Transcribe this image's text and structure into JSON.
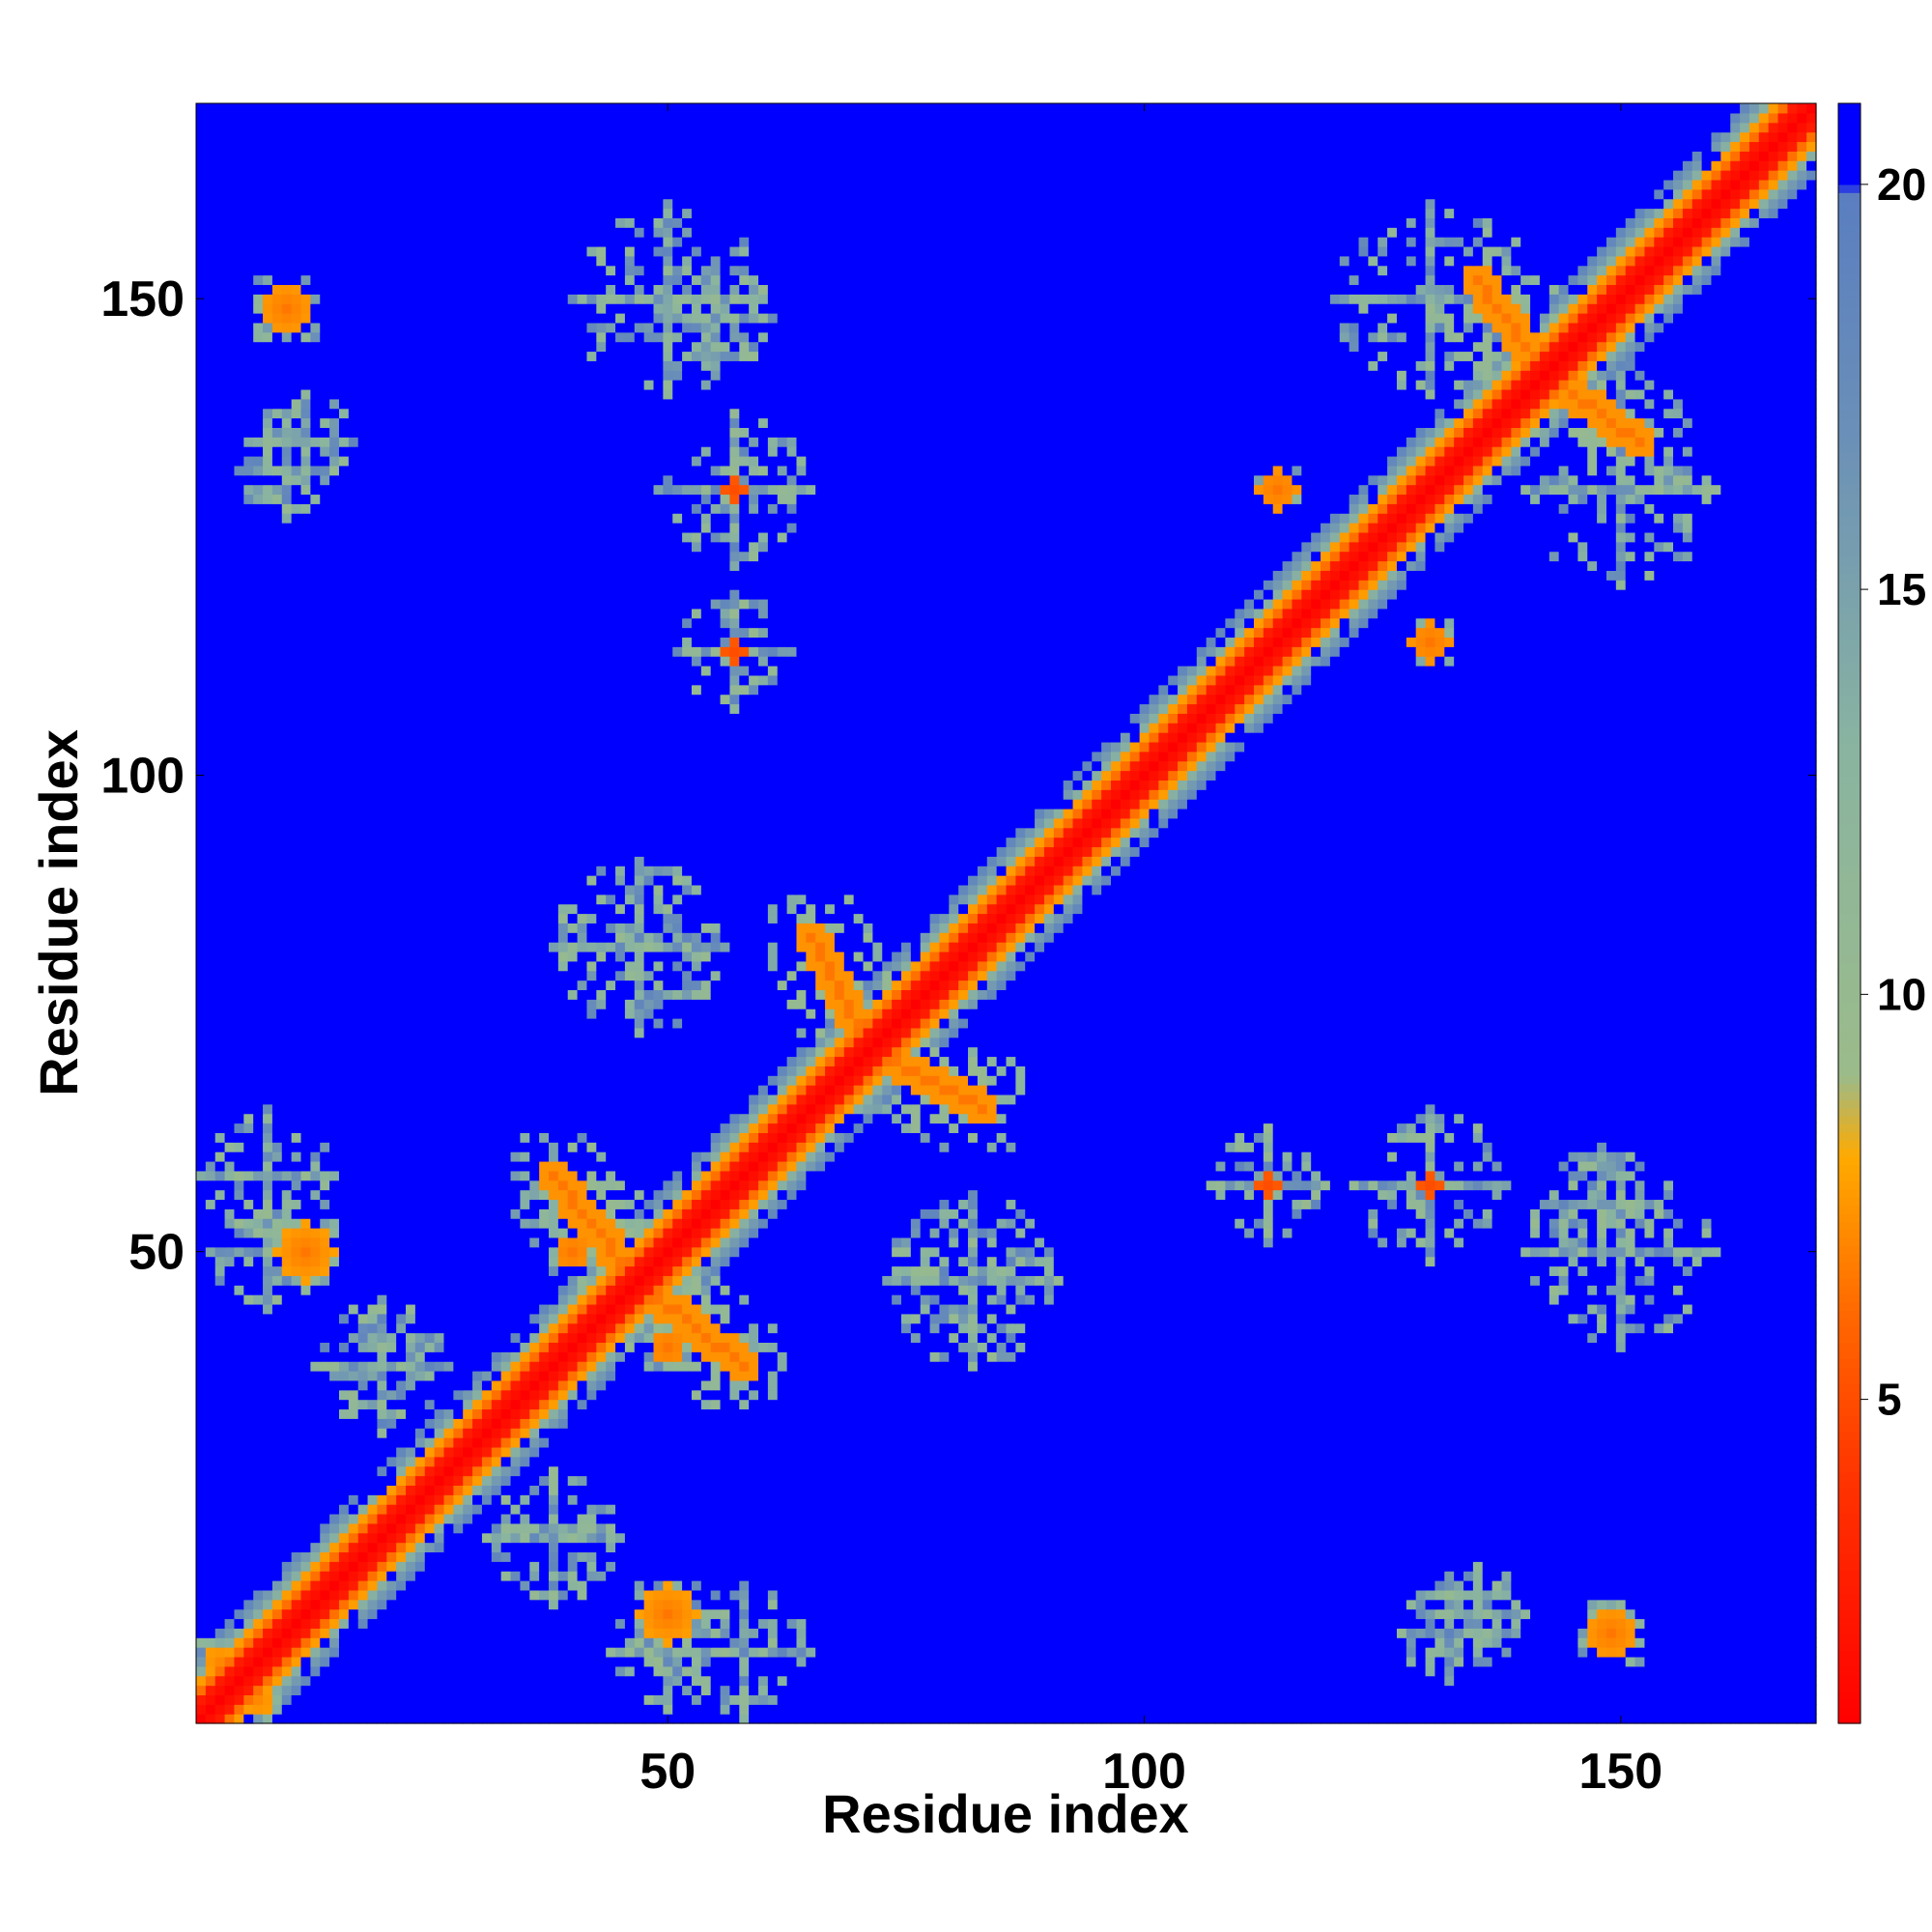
{
  "chart_data": {
    "type": "heatmap",
    "title": "",
    "xlabel": "Residue index",
    "ylabel": "Residue index",
    "n_residues": 170,
    "xlim": [
      1,
      170
    ],
    "ylim": [
      1,
      170
    ],
    "x_ticks": [
      50,
      100,
      150
    ],
    "y_ticks": [
      50,
      100,
      150
    ],
    "colorbar": {
      "range": [
        1,
        21
      ],
      "ticks": [
        5,
        10,
        15,
        20
      ],
      "colors": [
        {
          "value": 1,
          "color": "#ff0000"
        },
        {
          "value": 4,
          "color": "#ff3300"
        },
        {
          "value": 6,
          "color": "#ff6600"
        },
        {
          "value": 8,
          "color": "#ffaa00"
        },
        {
          "value": 9,
          "color": "#9bbb8a"
        },
        {
          "value": 13,
          "color": "#8ab4a0"
        },
        {
          "value": 17,
          "color": "#6a8fb8"
        },
        {
          "value": 19.9,
          "color": "#5a7ec0"
        },
        {
          "value": 20,
          "color": "#0000ff"
        },
        {
          "value": 21,
          "color": "#0000ff"
        }
      ]
    },
    "description_of_values": "pairwise residue distance map, saturated at 20+",
    "contacts": [
      {
        "type": "diagonal",
        "from": 1,
        "to": 170,
        "core": 2,
        "mid_width": 4,
        "outer_width": 7
      },
      {
        "type": "band",
        "i": [
          65,
          70
        ],
        "j": [
          73,
          83
        ],
        "anti": true,
        "value": 6.5
      },
      {
        "type": "band",
        "i": [
          73,
          83
        ],
        "j": [
          65,
          70
        ],
        "anti": true,
        "value": 6.5
      },
      {
        "type": "band",
        "i": [
          38,
          46
        ],
        "j": [
          48,
          58
        ],
        "anti": true,
        "value": 6.5
      },
      {
        "type": "band",
        "i": [
          48,
          58
        ],
        "j": [
          38,
          46
        ],
        "anti": true,
        "value": 6.5
      },
      {
        "type": "band",
        "i": [
          135,
          140
        ],
        "j": [
          145,
          152
        ],
        "anti": true,
        "value": 6.5
      },
      {
        "type": "band",
        "i": [
          145,
          152
        ],
        "j": [
          135,
          140
        ],
        "anti": true,
        "value": 6.5
      },
      {
        "type": "blob",
        "x": 50,
        "y": 12,
        "r": 3,
        "value": 6.5
      },
      {
        "type": "blob",
        "x": 12,
        "y": 50,
        "r": 3,
        "value": 6.5
      },
      {
        "type": "blob",
        "x": 149,
        "y": 10,
        "r": 2.5,
        "value": 6.5
      },
      {
        "type": "blob",
        "x": 10,
        "y": 149,
        "r": 2.5,
        "value": 6.5
      },
      {
        "type": "blob",
        "x": 114,
        "y": 130,
        "r": 2,
        "value": 6.5
      },
      {
        "type": "blob",
        "x": 130,
        "y": 114,
        "r": 2,
        "value": 6.5
      },
      {
        "type": "blob",
        "x": 57,
        "y": 113,
        "r": 1,
        "value": 5
      },
      {
        "type": "blob",
        "x": 113,
        "y": 57,
        "r": 1,
        "value": 5
      },
      {
        "type": "blob",
        "x": 57,
        "y": 130,
        "r": 1,
        "value": 5
      },
      {
        "type": "blob",
        "x": 130,
        "y": 57,
        "r": 1,
        "value": 5
      },
      {
        "type": "blob",
        "x": 50,
        "y": 40,
        "r": 1.5,
        "value": 6.5
      },
      {
        "type": "blob",
        "x": 40,
        "y": 50,
        "r": 1.5,
        "value": 6.5
      },
      {
        "type": "blob",
        "x": 3,
        "y": 7,
        "r": 1.5,
        "value": 7
      },
      {
        "type": "blob",
        "x": 7,
        "y": 3,
        "r": 1.5,
        "value": 7
      },
      {
        "type": "halo",
        "x": 47,
        "y": 82,
        "r": 9,
        "density": 0.45
      },
      {
        "type": "halo",
        "x": 82,
        "y": 47,
        "r": 9,
        "density": 0.45
      },
      {
        "type": "halo",
        "x": 57,
        "y": 130,
        "r": 8,
        "density": 0.3
      },
      {
        "type": "halo",
        "x": 130,
        "y": 57,
        "r": 8,
        "density": 0.3
      },
      {
        "type": "halo",
        "x": 57,
        "y": 113,
        "r": 6,
        "density": 0.3
      },
      {
        "type": "halo",
        "x": 113,
        "y": 57,
        "r": 6,
        "density": 0.3
      },
      {
        "type": "halo",
        "x": 50,
        "y": 150,
        "r": 10,
        "density": 0.22
      },
      {
        "type": "halo",
        "x": 150,
        "y": 50,
        "r": 10,
        "density": 0.22
      },
      {
        "type": "halo",
        "x": 130,
        "y": 150,
        "r": 10,
        "density": 0.22
      },
      {
        "type": "halo",
        "x": 150,
        "y": 130,
        "r": 10,
        "density": 0.22
      },
      {
        "type": "halo",
        "x": 12,
        "y": 135,
        "r": 5,
        "density": 0.4
      },
      {
        "type": "halo",
        "x": 135,
        "y": 12,
        "r": 5,
        "density": 0.4
      },
      {
        "type": "halo",
        "x": 8,
        "y": 58,
        "r": 7,
        "density": 0.35
      },
      {
        "type": "halo",
        "x": 58,
        "y": 8,
        "r": 7,
        "density": 0.35
      },
      {
        "type": "halo",
        "x": 148,
        "y": 55,
        "r": 6,
        "density": 0.35
      },
      {
        "type": "halo",
        "x": 55,
        "y": 148,
        "r": 6,
        "density": 0.35
      },
      {
        "type": "halo",
        "x": 132,
        "y": 10,
        "r": 5,
        "density": 0.45
      },
      {
        "type": "halo",
        "x": 10,
        "y": 132,
        "r": 5,
        "density": 0.45
      },
      {
        "type": "halo",
        "x": 50,
        "y": 8,
        "r": 6,
        "density": 0.35
      },
      {
        "type": "halo",
        "x": 8,
        "y": 50,
        "r": 6,
        "density": 0.35
      },
      {
        "type": "halo",
        "x": 20,
        "y": 38,
        "r": 7,
        "density": 0.35
      },
      {
        "type": "halo",
        "x": 38,
        "y": 20,
        "r": 7,
        "density": 0.35
      }
    ]
  }
}
